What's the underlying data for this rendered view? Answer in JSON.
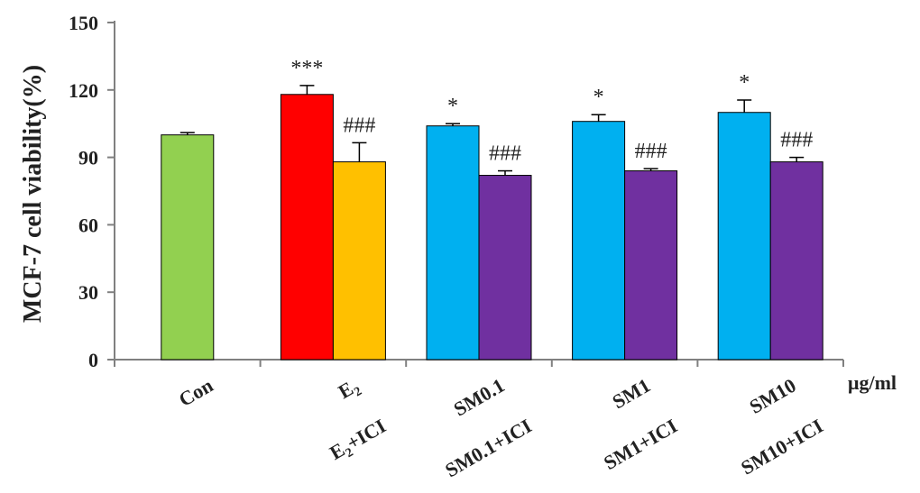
{
  "chart_data": {
    "type": "bar",
    "title": "",
    "ylabel": "MCF-7 cell viability(%)",
    "x_unit": "μg/ml",
    "ylim": [
      0,
      150
    ],
    "yticks": [
      0,
      30,
      60,
      90,
      120,
      150
    ],
    "grid": false,
    "legend": "none",
    "groups": [
      {
        "labels": [
          {
            "text": "Con"
          }
        ]
      },
      {
        "labels": [
          {
            "text": "E",
            "sub": "2"
          },
          {
            "text": "E",
            "sub": "2",
            "suffix": "+ICI"
          }
        ]
      },
      {
        "labels": [
          {
            "text": "SM0.1"
          },
          {
            "text": "SM0.1+ICI"
          }
        ]
      },
      {
        "labels": [
          {
            "text": "SM1"
          },
          {
            "text": "SM1+ICI"
          }
        ]
      },
      {
        "labels": [
          {
            "text": "SM10"
          },
          {
            "text": "SM10+ICI"
          }
        ]
      }
    ],
    "bars": [
      {
        "group": 0,
        "category": "Con",
        "value": 100,
        "error": 1,
        "color": "#92d050",
        "annotation": ""
      },
      {
        "group": 1,
        "category": "E2",
        "value": 118,
        "error": 4,
        "color": "#ff0000",
        "annotation": "***"
      },
      {
        "group": 1,
        "category": "E2+ICI",
        "value": 88,
        "error": 8.5,
        "color": "#ffc000",
        "annotation": "###"
      },
      {
        "group": 2,
        "category": "SM0.1",
        "value": 104,
        "error": 1,
        "color": "#00b0f0",
        "annotation": "*"
      },
      {
        "group": 2,
        "category": "SM0.1+ICI",
        "value": 82,
        "error": 2,
        "color": "#7030a0",
        "annotation": "###"
      },
      {
        "group": 3,
        "category": "SM1",
        "value": 106,
        "error": 3,
        "color": "#00b0f0",
        "annotation": "*"
      },
      {
        "group": 3,
        "category": "SM1+ICI",
        "value": 84,
        "error": 1,
        "color": "#7030a0",
        "annotation": "###"
      },
      {
        "group": 4,
        "category": "SM10",
        "value": 110,
        "error": 5.5,
        "color": "#00b0f0",
        "annotation": "*"
      },
      {
        "group": 4,
        "category": "SM10+ICI",
        "value": 88,
        "error": 2,
        "color": "#7030a0",
        "annotation": "###"
      }
    ]
  }
}
